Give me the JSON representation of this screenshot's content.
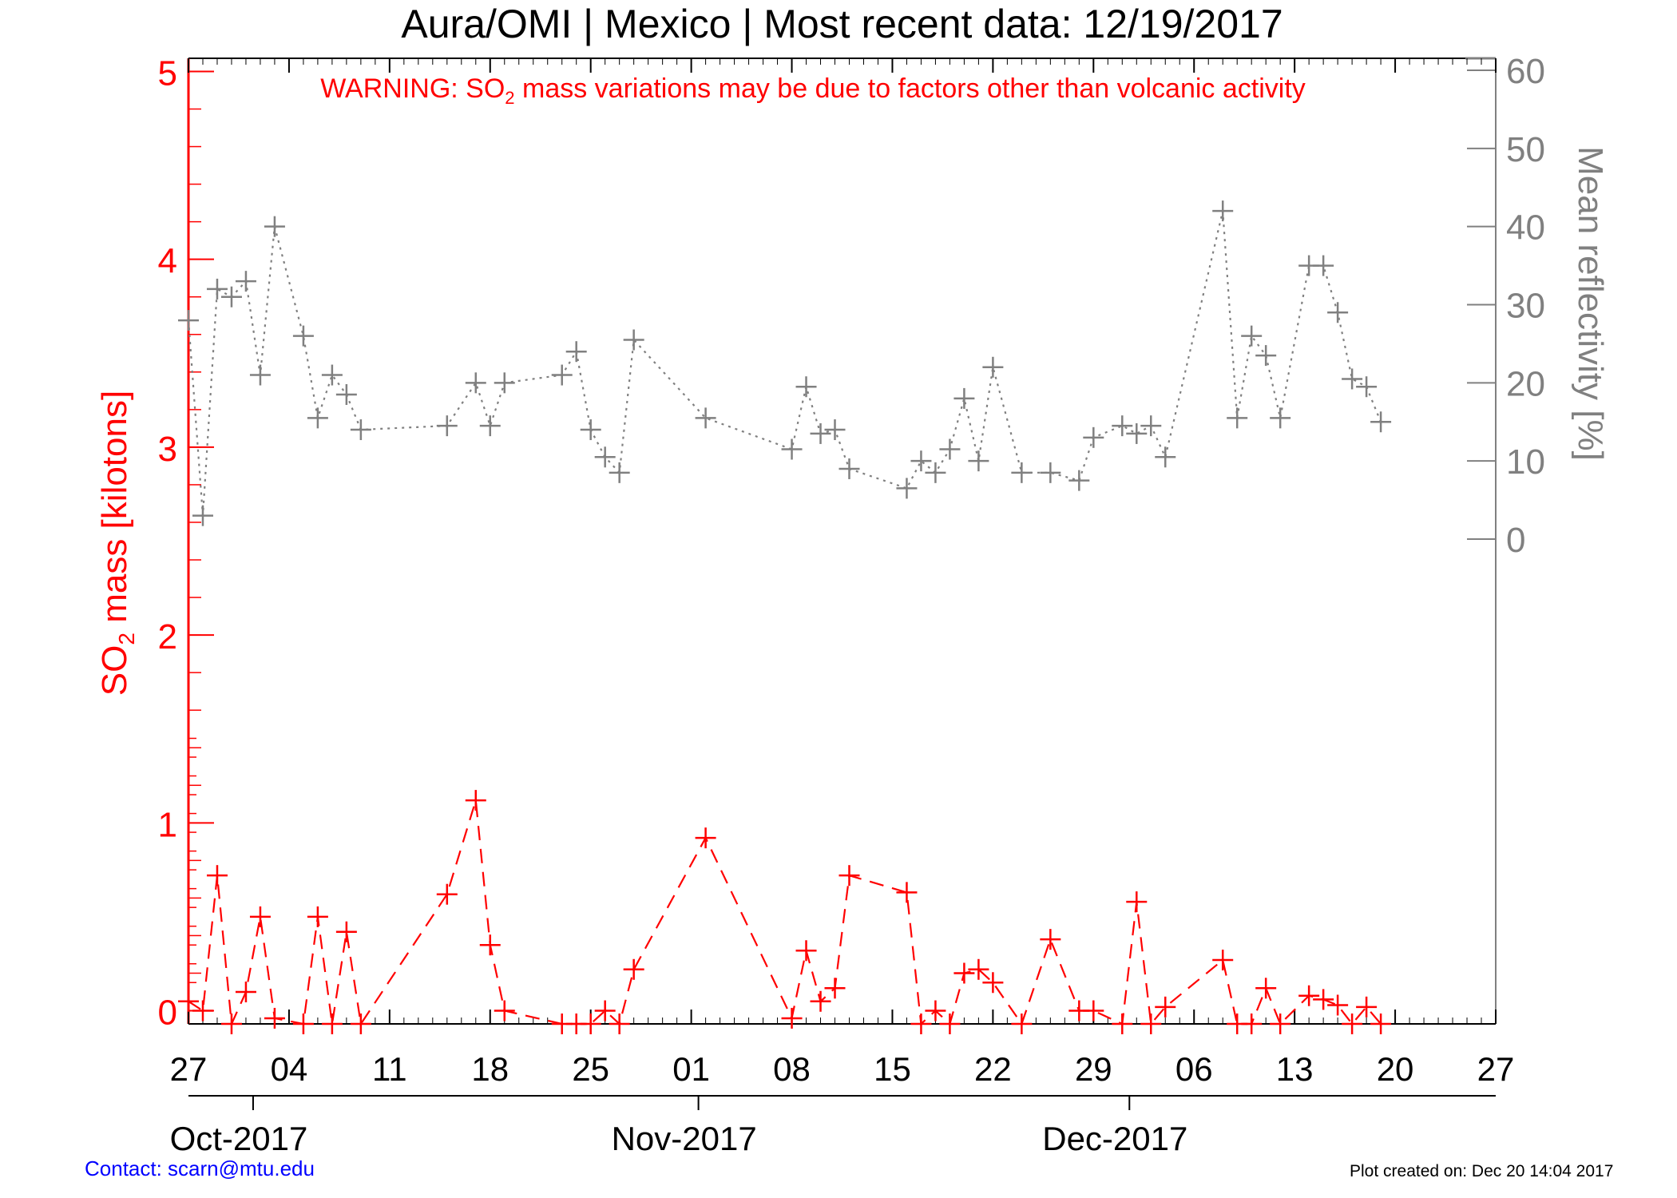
{
  "chart_data": {
    "type": "line",
    "title": "Aura/OMI | Mexico | Most recent data: 12/19/2017",
    "warning": {
      "prefix": "WARNING: SO",
      "sub": "2",
      "suffix": " mass variations may be due to factors other than volcanic activity"
    },
    "ylabel_left": {
      "prefix": "SO",
      "sub": "2",
      "suffix": " mass [kilotons]"
    },
    "ylabel_right": "Mean reflectivity [%]",
    "x_date_ticks": [
      {
        "day": 0,
        "label": "27"
      },
      {
        "day": 7,
        "label": "04"
      },
      {
        "day": 14,
        "label": "11"
      },
      {
        "day": 21,
        "label": "18"
      },
      {
        "day": 28,
        "label": "25"
      },
      {
        "day": 35,
        "label": "01"
      },
      {
        "day": 42,
        "label": "08"
      },
      {
        "day": 49,
        "label": "15"
      },
      {
        "day": 56,
        "label": "22"
      },
      {
        "day": 63,
        "label": "29"
      },
      {
        "day": 70,
        "label": "06"
      },
      {
        "day": 77,
        "label": "13"
      },
      {
        "day": 84,
        "label": "20"
      },
      {
        "day": 91,
        "label": "27"
      }
    ],
    "x_months": [
      {
        "day": 3.5,
        "label": "Oct-2017"
      },
      {
        "day": 34.5,
        "label": "Nov-2017"
      },
      {
        "day": 64.5,
        "label": "Dec-2017"
      }
    ],
    "y_left_ticks": [
      0,
      1,
      2,
      3,
      4,
      5
    ],
    "y_right_ticks": [
      0,
      10,
      20,
      30,
      40,
      50,
      60
    ],
    "ylim_left": [
      -0.07,
      5.07
    ],
    "xlim_days": [
      0,
      91
    ],
    "series": [
      {
        "name": "SO2 mass",
        "axis": "left",
        "color": "#ff0000",
        "style": "dashed",
        "points": [
          [
            0.0,
            0.05
          ],
          [
            1.0,
            0.0
          ],
          [
            2.0,
            0.72
          ],
          [
            3.0,
            -0.07
          ],
          [
            4.0,
            0.1
          ],
          [
            5.0,
            0.5
          ],
          [
            6.0,
            -0.04
          ],
          [
            8.0,
            -0.07
          ],
          [
            9.0,
            0.5
          ],
          [
            10.0,
            -0.07
          ],
          [
            11.0,
            0.42
          ],
          [
            12.0,
            -0.07
          ],
          [
            18.0,
            0.62
          ],
          [
            20.0,
            1.12
          ],
          [
            21.0,
            0.35
          ],
          [
            22.0,
            0.0
          ],
          [
            26.0,
            -0.07
          ],
          [
            27.0,
            -0.07
          ],
          [
            28.0,
            -0.07
          ],
          [
            29.0,
            0.0
          ],
          [
            30.0,
            -0.07
          ],
          [
            31.0,
            0.22
          ],
          [
            36.0,
            0.92
          ],
          [
            42.0,
            -0.04
          ],
          [
            43.0,
            0.32
          ],
          [
            44.0,
            0.05
          ],
          [
            45.0,
            0.12
          ],
          [
            46.0,
            0.72
          ],
          [
            50.0,
            0.63
          ],
          [
            51.0,
            -0.07
          ],
          [
            52.0,
            0.0
          ],
          [
            53.0,
            -0.07
          ],
          [
            54.0,
            0.2
          ],
          [
            55.0,
            0.22
          ],
          [
            56.0,
            0.15
          ],
          [
            58.0,
            -0.07
          ],
          [
            60.0,
            0.38
          ],
          [
            62.0,
            0.0
          ],
          [
            63.0,
            0.0
          ],
          [
            65.0,
            -0.07
          ],
          [
            66.0,
            0.58
          ],
          [
            67.0,
            -0.07
          ],
          [
            68.0,
            0.02
          ],
          [
            72.0,
            0.27
          ],
          [
            73.0,
            -0.07
          ],
          [
            74.0,
            -0.07
          ],
          [
            75.0,
            0.12
          ],
          [
            76.0,
            -0.07
          ],
          [
            78.0,
            0.08
          ],
          [
            79.0,
            0.06
          ],
          [
            80.0,
            0.03
          ],
          [
            81.0,
            -0.07
          ],
          [
            82.0,
            0.02
          ],
          [
            83.0,
            -0.07
          ]
        ]
      },
      {
        "name": "Mean reflectivity",
        "axis": "right",
        "color": "#808080",
        "style": "dotted",
        "points": [
          [
            0.0,
            28.0
          ],
          [
            1.0,
            3.0
          ],
          [
            2.0,
            32.0
          ],
          [
            3.0,
            31.0
          ],
          [
            4.0,
            33.0
          ],
          [
            5.0,
            21.0
          ],
          [
            6.0,
            40.0
          ],
          [
            8.0,
            26.0
          ],
          [
            9.0,
            15.5
          ],
          [
            10.0,
            21.0
          ],
          [
            11.0,
            18.5
          ],
          [
            12.0,
            14.0
          ],
          [
            18.0,
            14.5
          ],
          [
            20.0,
            20.0
          ],
          [
            21.0,
            14.5
          ],
          [
            22.0,
            20.0
          ],
          [
            26.0,
            21.0
          ],
          [
            27.0,
            24.0
          ],
          [
            28.0,
            14.0
          ],
          [
            29.0,
            10.5
          ],
          [
            30.0,
            8.5
          ],
          [
            31.0,
            25.5
          ],
          [
            36.0,
            15.5
          ],
          [
            42.0,
            11.5
          ],
          [
            43.0,
            19.5
          ],
          [
            44.0,
            13.5
          ],
          [
            45.0,
            14.0
          ],
          [
            46.0,
            9.0
          ],
          [
            50.0,
            6.5
          ],
          [
            51.0,
            10.0
          ],
          [
            52.0,
            8.5
          ],
          [
            53.0,
            11.5
          ],
          [
            54.0,
            18.0
          ],
          [
            55.0,
            10.0
          ],
          [
            56.0,
            22.0
          ],
          [
            58.0,
            8.5
          ],
          [
            60.0,
            8.5
          ],
          [
            62.0,
            7.5
          ],
          [
            63.0,
            13.0
          ],
          [
            65.0,
            14.5
          ],
          [
            66.0,
            13.5
          ],
          [
            67.0,
            14.5
          ],
          [
            68.0,
            10.5
          ],
          [
            72.0,
            42.0
          ],
          [
            73.0,
            15.5
          ],
          [
            74.0,
            26.0
          ],
          [
            75.0,
            23.5
          ],
          [
            76.0,
            15.5
          ],
          [
            78.0,
            35.0
          ],
          [
            79.0,
            35.0
          ],
          [
            80.0,
            29.0
          ],
          [
            81.0,
            20.5
          ],
          [
            82.0,
            19.5
          ],
          [
            83.0,
            15.0
          ]
        ]
      }
    ]
  },
  "footer": {
    "contact": "Contact: scarn@mtu.edu",
    "created": "Plot created on: Dec 20 14:04 2017"
  }
}
